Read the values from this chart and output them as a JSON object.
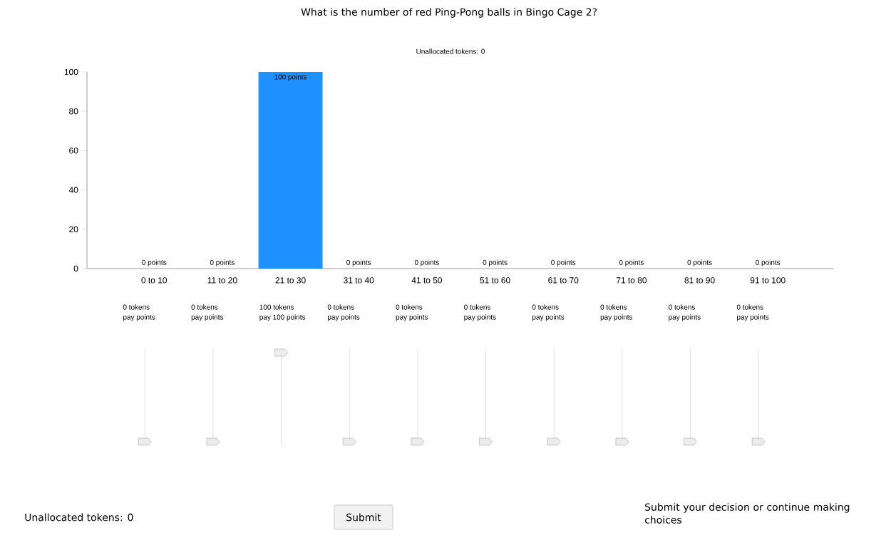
{
  "chart_data": {
    "type": "bar",
    "title": "What is the number of red Ping-Pong balls in Bingo Cage 2?",
    "subtitle": "Unallocated tokens: 0",
    "categories": [
      "0 to 10",
      "11 to 20",
      "21 to 30",
      "31 to 40",
      "41 to 50",
      "51 to 60",
      "61 to 70",
      "71 to 80",
      "81 to 90",
      "91 to 100"
    ],
    "values": [
      0,
      0,
      100,
      0,
      0,
      0,
      0,
      0,
      0,
      0
    ],
    "value_labels": [
      "0 points",
      "0 points",
      "100 points",
      "0 points",
      "0 points",
      "0 points",
      "0 points",
      "0 points",
      "0 points",
      "0 points"
    ],
    "color": "#1e90ff",
    "ylim": [
      0,
      100
    ],
    "yticks": [
      0,
      20,
      40,
      60,
      80,
      100
    ],
    "annotations": [
      "0 tokens",
      "pay  points",
      "0 tokens",
      "pay  points",
      "100 tokens",
      "pay 100 points",
      "0 tokens",
      "pay  points",
      "0 tokens",
      "pay  points",
      "0 tokens",
      "pay  points",
      "0 tokens",
      "pay  points",
      "0 tokens",
      "pay  points",
      "0 tokens",
      "pay  points",
      "0 tokens",
      "pay  points",
      "Unallocated tokens: 0",
      "Submit",
      "Submit your decision or continue making choices"
    ]
  }
}
